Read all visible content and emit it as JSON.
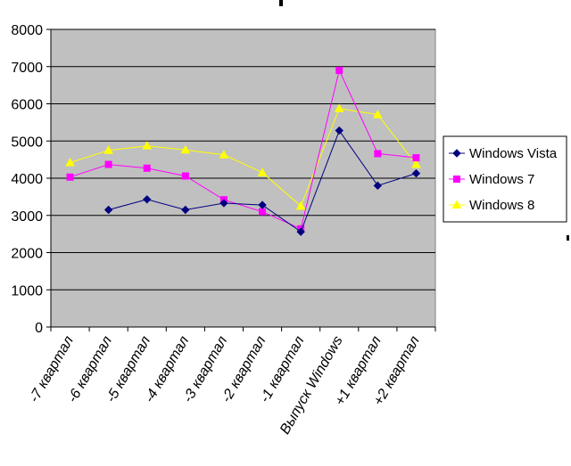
{
  "chart_data": {
    "type": "line",
    "title": "",
    "xlabel": "",
    "ylabel": "",
    "categories": [
      "-7 квартал",
      "-6 квартал",
      "-5 квартал",
      "-4 квартал",
      "-3 квартал",
      "-2 квартал",
      "-1 квартал",
      "Выпуск Windows",
      "+1 квартал",
      "+2 квартал"
    ],
    "ylim": [
      0,
      8000
    ],
    "yticks": [
      0,
      1000,
      2000,
      3000,
      4000,
      5000,
      6000,
      7000,
      8000
    ],
    "grid": true,
    "legend_position": "right",
    "plot_background": "#c0c0c0",
    "series": [
      {
        "name": "Windows Vista",
        "color": "#000080",
        "marker": "diamond",
        "values": [
          null,
          3150,
          3430,
          3150,
          3330,
          3280,
          2560,
          5280,
          3800,
          4130
        ]
      },
      {
        "name": "Windows 7",
        "color": "#ff00ff",
        "marker": "square",
        "values": [
          4030,
          4370,
          4270,
          4060,
          3420,
          3100,
          2640,
          6900,
          4660,
          4550
        ]
      },
      {
        "name": "Windows 8",
        "color": "#ffff00",
        "marker": "triangle",
        "values": [
          4420,
          4750,
          4870,
          4760,
          4630,
          4150,
          3250,
          5870,
          5710,
          4370
        ]
      }
    ]
  }
}
